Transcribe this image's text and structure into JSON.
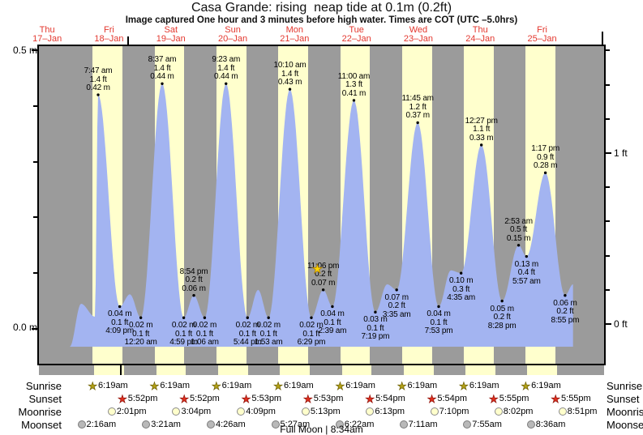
{
  "header": {
    "title": "Casa Grande: rising  neap tide at 0.1m (0.2ft)",
    "subtitle": "Image captured One hour and 3 minutes before high water. Times are COT (UTC –5.0hrs)"
  },
  "axis": {
    "left_top": "0.5 m",
    "left_bottom": "0.0 m",
    "right_top": "1 ft",
    "right_bottom": "0 ft"
  },
  "days": [
    {
      "dow": "Thu",
      "date": "17–Jan"
    },
    {
      "dow": "Fri",
      "date": "18–Jan"
    },
    {
      "dow": "Sat",
      "date": "19–Jan"
    },
    {
      "dow": "Sun",
      "date": "20–Jan"
    },
    {
      "dow": "Mon",
      "date": "21–Jan"
    },
    {
      "dow": "Tue",
      "date": "22–Jan"
    },
    {
      "dow": "Wed",
      "date": "23–Jan"
    },
    {
      "dow": "Thu",
      "date": "24–Jan"
    },
    {
      "dow": "Fri",
      "date": "25–Jan"
    }
  ],
  "colors": {
    "night": "#9b9b9b",
    "daylight": "#ffffcd",
    "tide_fill": "#a3b4f1",
    "day_label_red": "#e3372e",
    "sunrise_star": "#b3a117",
    "sunrise_star_edge": "#6b5e00",
    "sunset_star": "#df2f1f",
    "sunset_star_edge": "#8e0f06",
    "moonrise_fill": "#ffffcc",
    "moonrise_edge": "#8a8a8a",
    "moonset_fill": "#b9b9b9",
    "moonset_edge": "#7a7a7a",
    "capture_star": "#ffd800",
    "capture_star_edge": "#b08000"
  },
  "chart_data": {
    "type": "area",
    "title": "Casa Grande: rising neap tide at 0.1m (0.2ft)",
    "ylabel_left_m": [
      "0.5 m",
      "0.0 m"
    ],
    "ylabel_right_ft": [
      "1 ft",
      "0 ft"
    ],
    "x_days": [
      "Thu 17-Jan",
      "Fri 18-Jan",
      "Sat 19-Jan",
      "Sun 20-Jan",
      "Mon 21-Jan",
      "Tue 22-Jan",
      "Wed 23-Jan",
      "Thu 24-Jan",
      "Fri 25-Jan"
    ],
    "events": [
      {
        "type": "edge",
        "day": 0,
        "time": "8:46 pm",
        "height_m": -0.032
      },
      {
        "type": "minor",
        "day": 1,
        "time": "1:09 am",
        "height_m": 0.045
      },
      {
        "type": "minor",
        "day": 1,
        "time": "6:30 am",
        "height_m": 0.022
      },
      {
        "type": "high",
        "day": 1,
        "time": "7:47 am",
        "height_m": 0.42,
        "label_m": "0.42 m",
        "label_ft": "1.4 ft"
      },
      {
        "type": "low",
        "day": 1,
        "time": "4:09 pm",
        "height_m": 0.04,
        "label_m": "0.04 m",
        "label_ft": "0.1 ft"
      },
      {
        "type": "minor",
        "day": 1,
        "time": "8:05 pm",
        "height_m": 0.062
      },
      {
        "type": "low",
        "day": 2,
        "time": "12:20 am",
        "height_m": 0.02,
        "label_m": "0.02 m",
        "label_ft": "0.1 ft"
      },
      {
        "type": "high",
        "day": 2,
        "time": "8:37 am",
        "height_m": 0.44,
        "label_m": "0.44 m",
        "label_ft": "1.4 ft"
      },
      {
        "type": "low",
        "day": 2,
        "time": "4:59 pm",
        "height_m": 0.02,
        "label_m": "0.02 m",
        "label_ft": "0.1 ft"
      },
      {
        "type": "high",
        "day": 2,
        "time": "8:54 pm",
        "height_m": 0.06,
        "label_m": "0.06 m",
        "label_ft": "0.2 ft"
      },
      {
        "type": "low",
        "day": 3,
        "time": "1:06 am",
        "height_m": 0.02,
        "label_m": "0.02 m",
        "label_ft": "0.1 ft"
      },
      {
        "type": "high",
        "day": 3,
        "time": "9:23 am",
        "height_m": 0.44,
        "label_m": "0.44 m",
        "label_ft": "1.4 ft"
      },
      {
        "type": "low",
        "day": 3,
        "time": "5:44 pm",
        "height_m": 0.02,
        "label_m": "0.02 m",
        "label_ft": "0.1 ft"
      },
      {
        "type": "minor",
        "day": 3,
        "time": "9:50 pm",
        "height_m": 0.07
      },
      {
        "type": "low",
        "day": 4,
        "time": "1:53 am",
        "height_m": 0.02,
        "label_m": "0.02 m",
        "label_ft": "0.1 ft"
      },
      {
        "type": "high",
        "day": 4,
        "time": "10:10 am",
        "height_m": 0.43,
        "label_m": "0.43 m",
        "label_ft": "1.4 ft"
      },
      {
        "type": "low",
        "day": 4,
        "time": "6:29 pm",
        "height_m": 0.02,
        "label_m": "0.02 m",
        "label_ft": "0.1 ft"
      },
      {
        "type": "high",
        "day": 4,
        "time": "11:06 pm",
        "height_m": 0.07,
        "label_m": "0.07 m",
        "label_ft": "0.2 ft",
        "capture_marker": true
      },
      {
        "type": "low",
        "day": 5,
        "time": "2:39 am",
        "height_m": 0.04,
        "label_m": "0.04 m",
        "label_ft": "0.1 ft"
      },
      {
        "type": "high",
        "day": 5,
        "time": "11:00 am",
        "height_m": 0.41,
        "label_m": "0.41 m",
        "label_ft": "1.3 ft"
      },
      {
        "type": "low",
        "day": 5,
        "time": "7:19 pm",
        "height_m": 0.03,
        "label_m": "0.03 m",
        "label_ft": "0.1 ft"
      },
      {
        "type": "minor",
        "day": 5,
        "time": "11:55 pm",
        "height_m": 0.08
      },
      {
        "type": "low",
        "day": 6,
        "time": "3:35 am",
        "height_m": 0.07,
        "label_m": "0.07 m",
        "label_ft": "0.2 ft"
      },
      {
        "type": "high",
        "day": 6,
        "time": "11:45 am",
        "height_m": 0.37,
        "label_m": "0.37 m",
        "label_ft": "1.2 ft"
      },
      {
        "type": "low",
        "day": 6,
        "time": "7:53 pm",
        "height_m": 0.04,
        "label_m": "0.04 m",
        "label_ft": "0.1 ft"
      },
      {
        "type": "minor",
        "day": 7,
        "time": "12:35 am",
        "height_m": 0.105
      },
      {
        "type": "low",
        "day": 7,
        "time": "4:35 am",
        "height_m": 0.1,
        "label_m": "0.10 m",
        "label_ft": "0.3 ft"
      },
      {
        "type": "high",
        "day": 7,
        "time": "12:27 pm",
        "height_m": 0.33,
        "label_m": "0.33 m",
        "label_ft": "1.1 ft"
      },
      {
        "type": "low",
        "day": 7,
        "time": "8:28 pm",
        "height_m": 0.05,
        "label_m": "0.05 m",
        "label_ft": "0.2 ft"
      },
      {
        "type": "high",
        "day": 8,
        "time": "2:53 am",
        "height_m": 0.15,
        "label_m": "0.15 m",
        "label_ft": "0.5 ft"
      },
      {
        "type": "low",
        "day": 8,
        "time": "5:57 am",
        "height_m": 0.13,
        "label_m": "0.13 m",
        "label_ft": "0.4 ft"
      },
      {
        "type": "high",
        "day": 8,
        "time": "1:17 pm",
        "height_m": 0.28,
        "label_m": "0.28 m",
        "label_ft": "0.9 ft"
      },
      {
        "type": "low",
        "day": 8,
        "time": "8:55 pm",
        "height_m": 0.06,
        "label_m": "0.06 m",
        "label_ft": "0.2 ft"
      },
      {
        "type": "edge",
        "day": 9,
        "time": "12:00 am",
        "height_m": 0.08
      }
    ]
  },
  "astro": {
    "rows": [
      {
        "label": "Sunrise",
        "icon": "sunrise-star",
        "times": [
          "6:19am",
          "6:19am",
          "6:19am",
          "6:19am",
          "6:19am",
          "6:19am",
          "6:19am",
          "6:19am"
        ]
      },
      {
        "label": "Sunset",
        "icon": "sunset-star",
        "times": [
          "5:52pm",
          "5:52pm",
          "5:53pm",
          "5:53pm",
          "5:54pm",
          "5:54pm",
          "5:55pm",
          "5:55pm"
        ]
      },
      {
        "label": "Moonrise",
        "icon": "moonrise-circle",
        "times": [
          "2:01pm",
          "3:04pm",
          "4:09pm",
          "5:13pm",
          "6:13pm",
          "7:10pm",
          "8:02pm",
          "8:51pm"
        ]
      },
      {
        "label": "Moonset",
        "icon": "moonset-circle",
        "times": [
          "2:16am",
          "3:21am",
          "4:26am",
          "5:27am",
          "6:22am",
          "7:11am",
          "7:55am",
          "8:36am"
        ]
      }
    ]
  },
  "footer": {
    "text": "Full Moon | 8:34am"
  }
}
